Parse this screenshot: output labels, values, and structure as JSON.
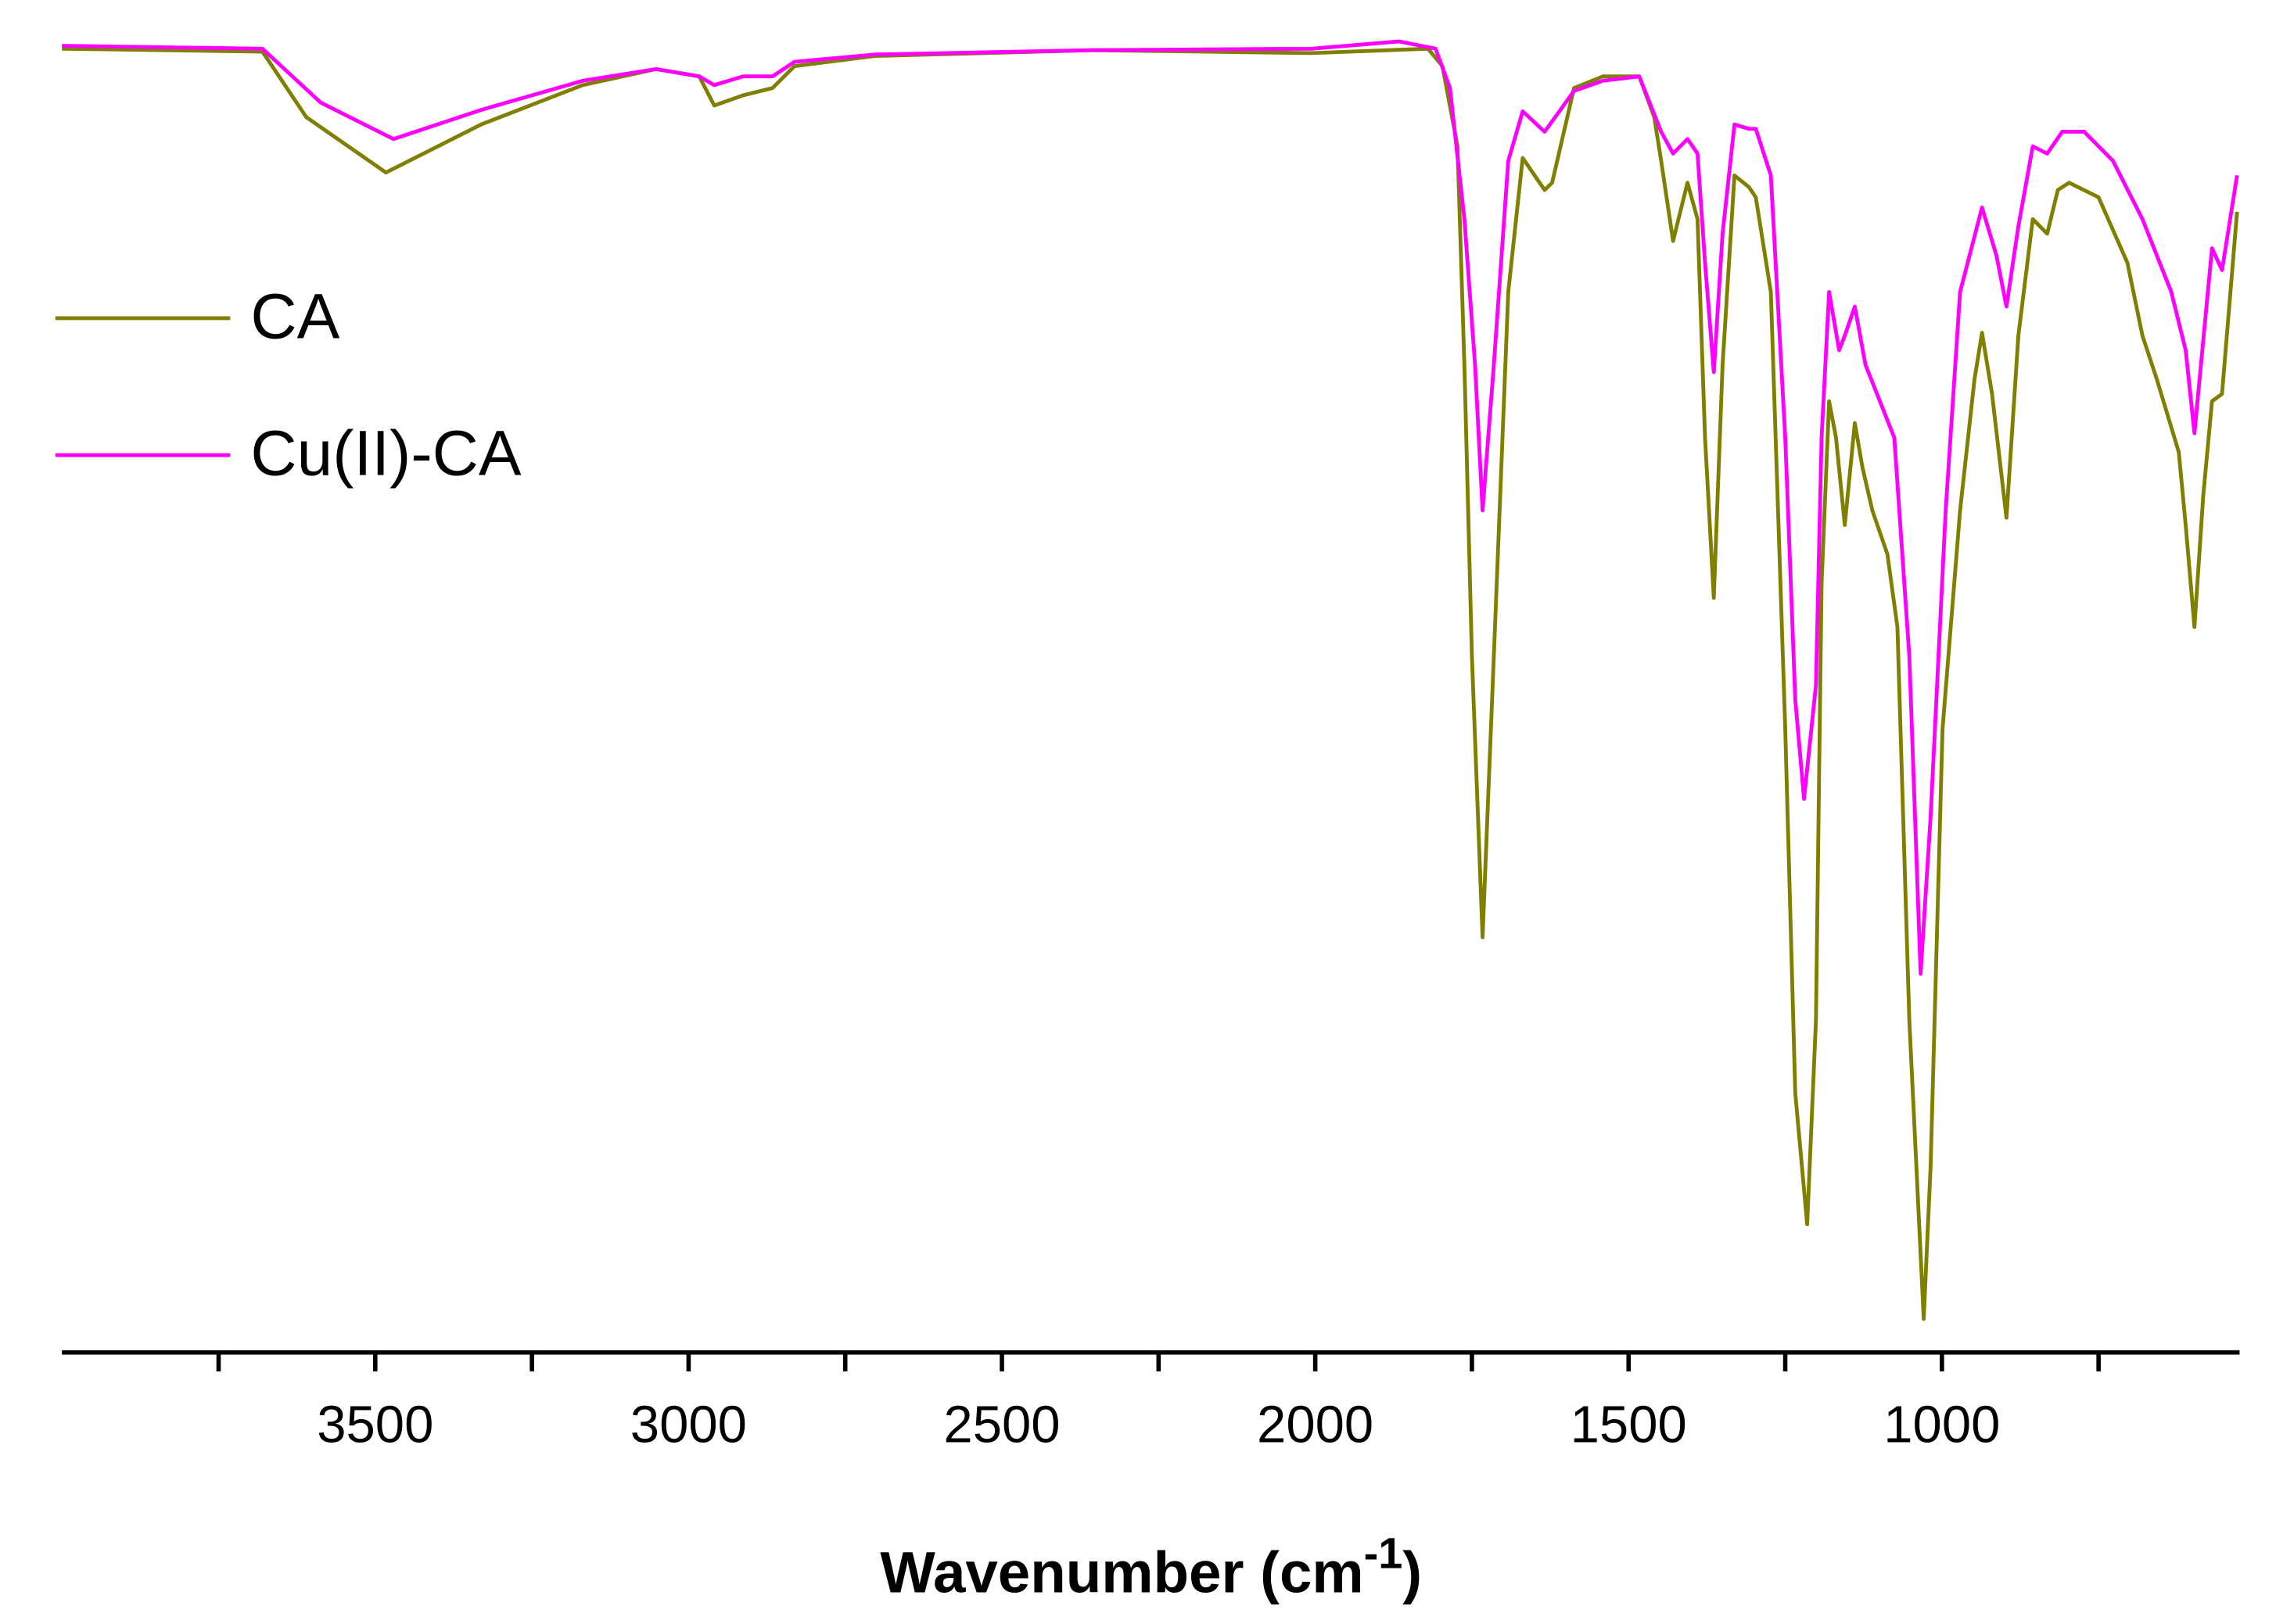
{
  "chart_data": {
    "type": "line",
    "xlabel": {
      "text": "Wavenumber (cm",
      "sup": "-1",
      "end": ")"
    },
    "xlim": [
      4000,
      525
    ],
    "xticks": [
      3500,
      3000,
      2500,
      2000,
      1500,
      1000
    ],
    "xminorticks": [
      3750,
      3250,
      2750,
      2250,
      1750,
      1250,
      750
    ],
    "ylim": [
      0,
      900
    ],
    "legend": "upper left",
    "series": [
      {
        "name": "CA",
        "color": "#808000",
        "x": [
          4000,
          3680,
          3610,
          3483,
          3331,
          3169,
          3052,
          2983,
          2959,
          2913,
          2866,
          2831,
          2703,
          2355,
          2006,
          1820,
          1797,
          1773,
          1762,
          1750,
          1733,
          1715,
          1692,
          1669,
          1634,
          1622,
          1587,
          1541,
          1483,
          1459,
          1448,
          1429,
          1406,
          1390,
          1378,
          1364,
          1350,
          1331,
          1308,
          1297,
          1273,
          1250,
          1234,
          1215,
          1201,
          1192,
          1180,
          1169,
          1155,
          1139,
          1127,
          1111,
          1087,
          1071,
          1052,
          1029,
          1018,
          999,
          971,
          948,
          936,
          920,
          897,
          878,
          855,
          832,
          815,
          797,
          750,
          704,
          680,
          657,
          622,
          611,
          597,
          583,
          569,
          553,
          529
        ],
        "values": [
          895,
          893,
          848,
          810,
          843,
          870,
          881,
          876,
          856,
          863,
          868,
          883,
          890,
          894,
          892,
          895,
          883,
          828,
          678,
          478,
          285,
          478,
          728,
          820,
          798,
          803,
          868,
          876,
          876,
          848,
          818,
          763,
          803,
          778,
          628,
          518,
          678,
          808,
          800,
          793,
          728,
          428,
          178,
          88,
          228,
          528,
          653,
          628,
          568,
          638,
          608,
          578,
          548,
          498,
          228,
          23,
          128,
          428,
          578,
          668,
          700,
          658,
          573,
          698,
          778,
          768,
          798,
          803,
          793,
          748,
          698,
          668,
          618,
          568,
          498,
          588,
          653,
          658,
          783
        ]
      },
      {
        "name": "Cu(II)-CA",
        "color": "#ff00ff",
        "x": [
          4000,
          3680,
          3587,
          3471,
          3331,
          3169,
          3052,
          2983,
          2959,
          2913,
          2866,
          2831,
          2703,
          2355,
          2006,
          1866,
          1808,
          1785,
          1762,
          1745,
          1733,
          1715,
          1692,
          1669,
          1634,
          1587,
          1541,
          1483,
          1448,
          1429,
          1406,
          1390,
          1378,
          1364,
          1350,
          1331,
          1308,
          1297,
          1273,
          1250,
          1234,
          1220,
          1201,
          1192,
          1180,
          1164,
          1155,
          1139,
          1122,
          1099,
          1076,
          1052,
          1034,
          1018,
          994,
          971,
          936,
          913,
          897,
          878,
          855,
          832,
          808,
          773,
          727,
          680,
          634,
          611,
          597,
          569,
          553,
          529
        ],
        "values": [
          897,
          895,
          858,
          833,
          853,
          873,
          881,
          876,
          870,
          876,
          876,
          886,
          891,
          894,
          895,
          900,
          895,
          868,
          778,
          678,
          578,
          678,
          818,
          852,
          838,
          866,
          873,
          876,
          838,
          823,
          833,
          823,
          748,
          673,
          768,
          843,
          840,
          840,
          808,
          628,
          448,
          380,
          458,
          628,
          728,
          688,
          698,
          718,
          678,
          653,
          628,
          478,
          260,
          368,
          578,
          728,
          786,
          753,
          718,
          773,
          828,
          823,
          838,
          838,
          818,
          778,
          728,
          688,
          631,
          758,
          743,
          808
        ]
      }
    ]
  }
}
